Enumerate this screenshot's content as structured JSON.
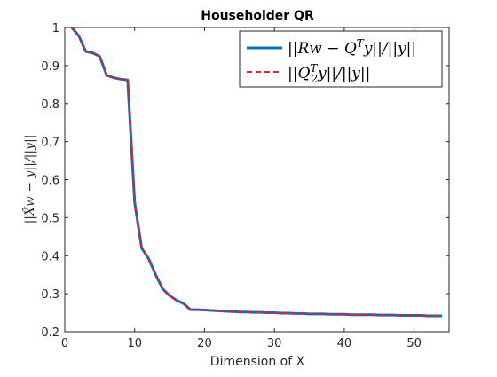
{
  "chart_data": {
    "type": "line",
    "title": "Householder QR",
    "xlabel": "Dimension of X",
    "ylabel": "||X̂w − y||/||y||",
    "xlim": [
      0,
      55
    ],
    "ylim": [
      0.2,
      1.0
    ],
    "x_ticks": [
      0,
      10,
      20,
      30,
      40,
      50
    ],
    "y_ticks": [
      0.2,
      0.3,
      0.4,
      0.5,
      0.6,
      0.7,
      0.8,
      0.9,
      1.0
    ],
    "x_tick_labels": [
      "0",
      "10",
      "20",
      "30",
      "40",
      "50"
    ],
    "y_tick_labels": [
      "0.2",
      "0.3",
      "0.4",
      "0.5",
      "0.6",
      "0.7",
      "0.8",
      "0.9",
      "1"
    ],
    "grid": false,
    "legend_position": "top-right",
    "x": [
      1,
      2,
      3,
      4,
      5,
      6,
      7,
      8,
      9,
      10,
      11,
      12,
      13,
      14,
      15,
      16,
      17,
      18,
      19,
      20,
      21,
      22,
      23,
      24,
      25,
      26,
      27,
      28,
      29,
      30,
      31,
      32,
      33,
      34,
      35,
      36,
      37,
      38,
      39,
      40,
      41,
      42,
      43,
      44,
      45,
      46,
      47,
      48,
      49,
      50,
      51,
      52,
      53,
      54
    ],
    "series": [
      {
        "name": "||Rw − Q^T y||/||y||",
        "color": "#0072BD",
        "style": "solid",
        "values": [
          1.0,
          0.978,
          0.937,
          0.933,
          0.924,
          0.874,
          0.868,
          0.864,
          0.862,
          0.54,
          0.42,
          0.392,
          0.35,
          0.313,
          0.295,
          0.283,
          0.274,
          0.258,
          0.258,
          0.257,
          0.256,
          0.255,
          0.254,
          0.253,
          0.252,
          0.252,
          0.251,
          0.251,
          0.25,
          0.25,
          0.249,
          0.249,
          0.248,
          0.248,
          0.247,
          0.247,
          0.247,
          0.246,
          0.246,
          0.246,
          0.245,
          0.245,
          0.245,
          0.245,
          0.244,
          0.244,
          0.244,
          0.243,
          0.243,
          0.243,
          0.243,
          0.242,
          0.242,
          0.242
        ]
      },
      {
        "name": "||Q_2^T y||/||y||",
        "color": "#E3212B",
        "style": "dashed",
        "values": [
          1.0,
          0.978,
          0.937,
          0.933,
          0.924,
          0.874,
          0.868,
          0.864,
          0.862,
          0.54,
          0.42,
          0.392,
          0.35,
          0.313,
          0.295,
          0.283,
          0.274,
          0.258,
          0.258,
          0.257,
          0.256,
          0.255,
          0.254,
          0.253,
          0.252,
          0.252,
          0.251,
          0.251,
          0.25,
          0.25,
          0.249,
          0.249,
          0.248,
          0.248,
          0.247,
          0.247,
          0.247,
          0.246,
          0.246,
          0.246,
          0.245,
          0.245,
          0.245,
          0.245,
          0.244,
          0.244,
          0.244,
          0.243,
          0.243,
          0.243,
          0.243,
          0.242,
          0.242,
          0.242
        ]
      }
    ]
  }
}
